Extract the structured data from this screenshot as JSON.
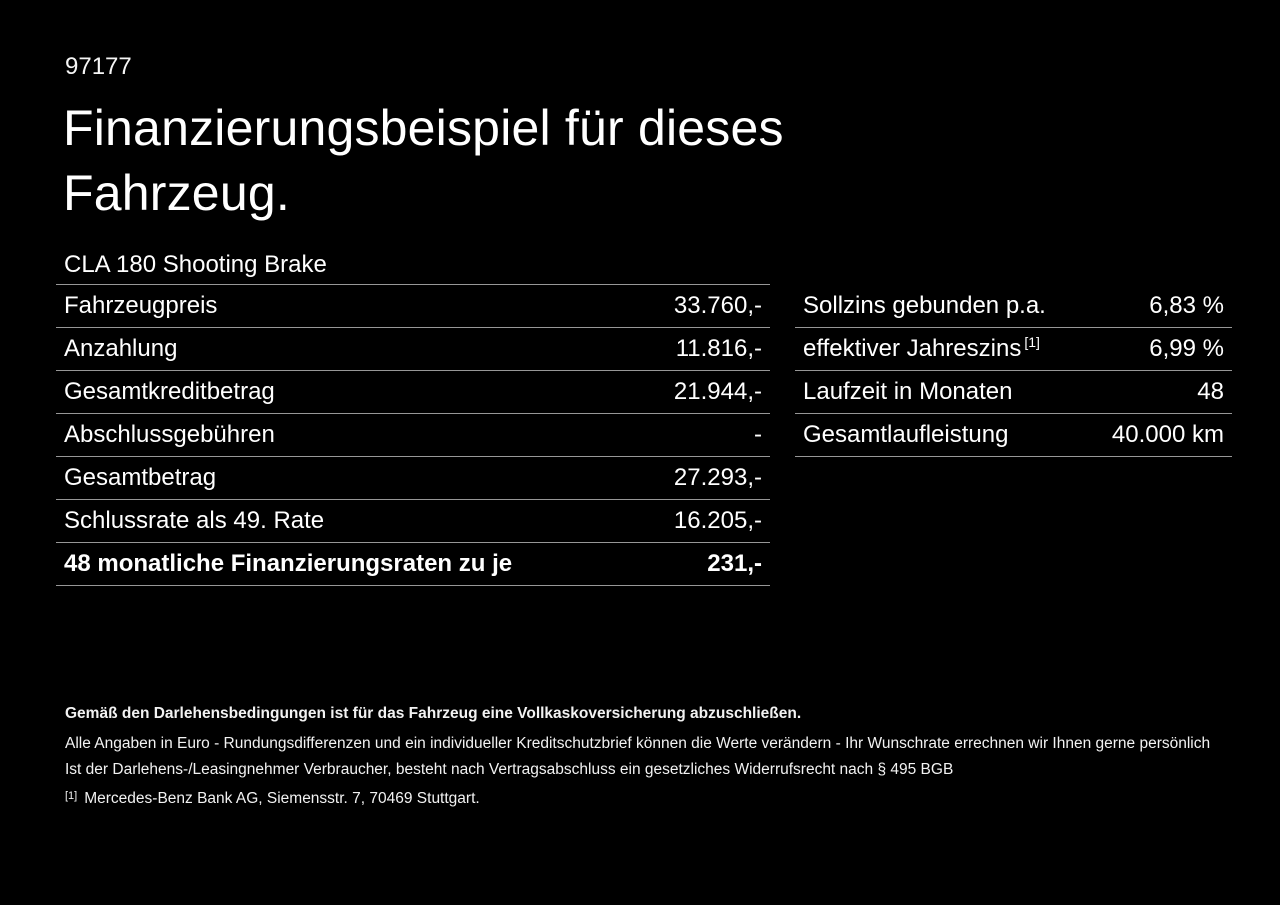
{
  "page": {
    "ref_number": "97177",
    "title_line1": "Finanzierungsbeispiel für dieses",
    "title_line2": "Fahrzeug.",
    "vehicle_model": "CLA 180 Shooting Brake"
  },
  "left_table": {
    "rows": [
      {
        "label": "Fahrzeugpreis",
        "value": "33.760,-"
      },
      {
        "label": "Anzahlung",
        "value": "11.816,-"
      },
      {
        "label": "Gesamtkreditbetrag",
        "value": "21.944,-"
      },
      {
        "label": "Abschlussgebühren",
        "value": "-"
      },
      {
        "label": "Gesamtbetrag",
        "value": "27.293,-"
      },
      {
        "label": "Schlussrate als 49. Rate",
        "value": "16.205,-"
      },
      {
        "label": "48 monatliche Finanzierungsraten zu je",
        "value": "231,-"
      }
    ]
  },
  "right_table": {
    "rows": [
      {
        "label": "Sollzins gebunden p.a.",
        "value": "6,83 %"
      },
      {
        "label": "effektiver Jahreszins",
        "superscript": "[1]",
        "value": "6,99 %"
      },
      {
        "label": "Laufzeit in Monaten",
        "value": "48"
      },
      {
        "label": "Gesamtlaufleistung",
        "value": "40.000 km"
      }
    ]
  },
  "footer": {
    "bold_note": "Gemäß den Darlehensbedingungen ist für das Fahrzeug eine Vollkaskoversicherung abzuschließen.",
    "note1": "Alle Angaben in Euro - Rundungsdifferenzen und ein individueller Kreditschutzbrief können die Werte verändern - Ihr Wunschrate errechnen wir Ihnen gerne persönlich",
    "note2": "Ist der Darlehens-/Leasingnehmer Verbraucher, besteht nach Vertragsabschluss ein gesetzliches Widerrufsrecht nach § 495 BGB",
    "footnote_marker": "[1]",
    "footnote_text": "Mercedes-Benz Bank AG, Siemensstr. 7, 70469 Stuttgart."
  },
  "colors": {
    "background": "#000000",
    "text": "#ffffff",
    "divider": "#979797"
  }
}
